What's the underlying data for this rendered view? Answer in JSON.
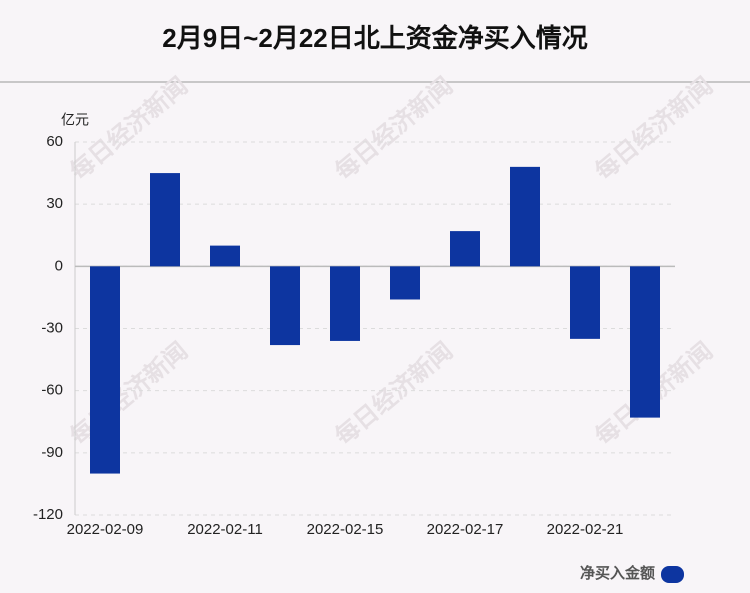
{
  "chart_data": {
    "type": "bar",
    "title": "2月9日~2月22日北上资金净买入情况",
    "y_axis_label": "亿元",
    "watermark": "每日经济新闻",
    "categories": [
      "2022-02-09",
      null,
      "2022-02-11",
      null,
      "2022-02-15",
      null,
      "2022-02-17",
      null,
      "2022-02-21",
      null
    ],
    "series": [
      {
        "name": "净买入金额",
        "color": "#0d35a0",
        "values": [
          -100,
          45,
          10,
          -38,
          -36,
          -16,
          17,
          48,
          -35,
          -73
        ]
      }
    ],
    "ylim": [
      -120,
      60
    ],
    "yticks": [
      60,
      30,
      0,
      -30,
      -60,
      -90,
      -120
    ],
    "grid": true,
    "legend": "bottom-right"
  }
}
